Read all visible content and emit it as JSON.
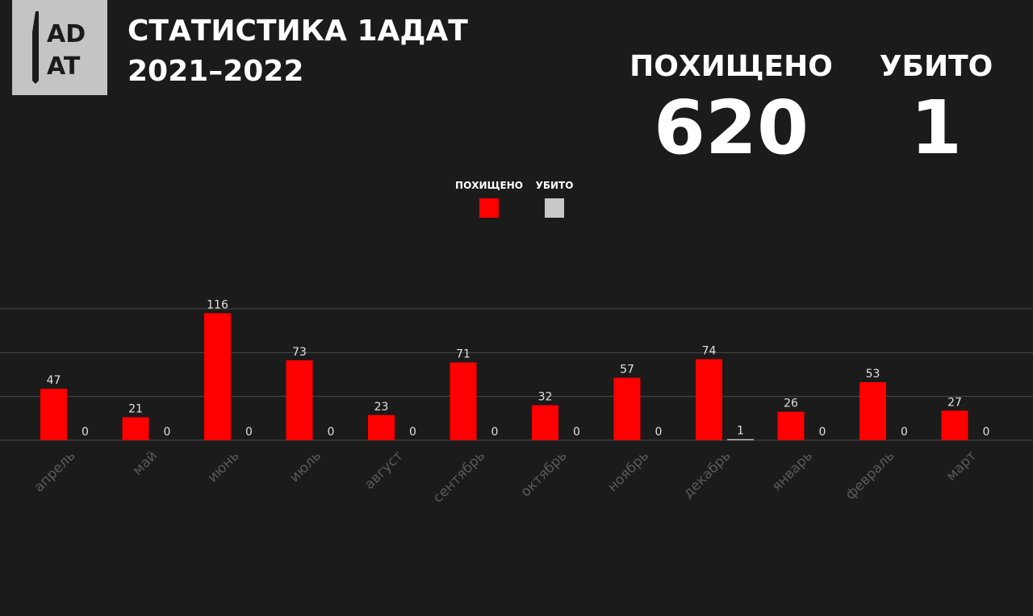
{
  "header": {
    "logo": [
      "AD",
      "AT"
    ],
    "title": "СТАТИСТИКА 1АДАТ",
    "subtitle": "2021–2022"
  },
  "summary": [
    {
      "label": "ПОХИЩЕНО",
      "value": 620
    },
    {
      "label": "УБИТО",
      "value": 1
    }
  ],
  "chart_data": {
    "type": "bar",
    "categories": [
      "апрель",
      "май",
      "июнь",
      "июль",
      "август",
      "сентябрь",
      "октябрь",
      "ноябрь",
      "декабрь",
      "январь",
      "февраль",
      "март"
    ],
    "series": [
      {
        "name": "ПОХИЩЕНО",
        "color": "#ff0000",
        "values": [
          47,
          21,
          116,
          73,
          23,
          71,
          32,
          57,
          74,
          26,
          53,
          27
        ]
      },
      {
        "name": "УБИТО",
        "color": "#c8c8c8",
        "values": [
          0,
          0,
          0,
          0,
          0,
          0,
          0,
          0,
          1,
          0,
          0,
          0
        ]
      }
    ],
    "ylim": [
      0,
      120
    ],
    "yticks": [
      0,
      40,
      80,
      120
    ],
    "grid": true
  }
}
